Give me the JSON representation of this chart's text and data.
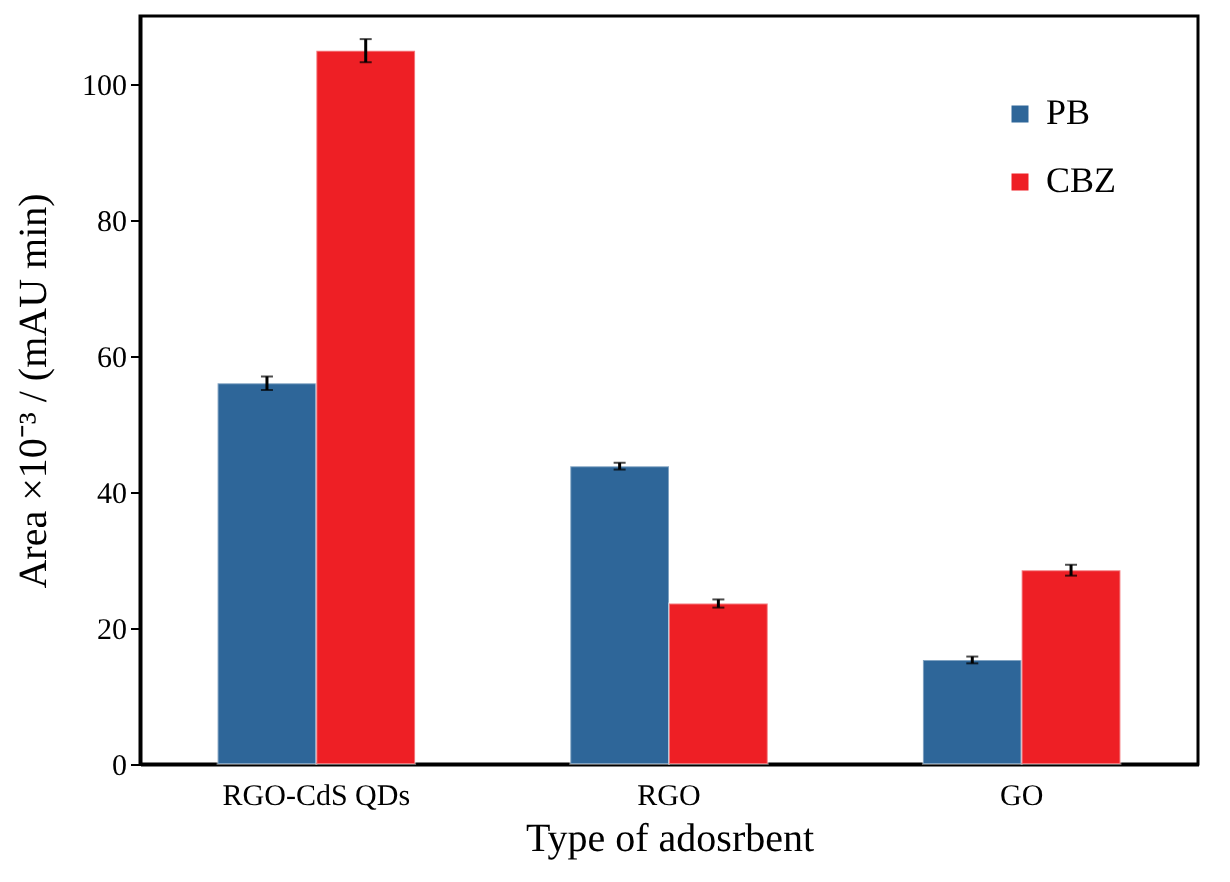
{
  "chart_data": {
    "type": "bar",
    "xlabel": "Type of adosrbent",
    "ylabel": "Area ×10⁻³ / (mAU min)",
    "categories": [
      "RGO-CdS QDs",
      "RGO",
      "GO"
    ],
    "series": [
      {
        "name": "PB",
        "color": "#2e6699",
        "values": [
          56.0,
          43.8,
          15.3
        ],
        "errors": [
          1.0,
          0.5,
          0.5
        ]
      },
      {
        "name": "CBZ",
        "color": "#ee1f25",
        "values": [
          104.9,
          23.6,
          28.5
        ],
        "errors": [
          1.7,
          0.6,
          0.8
        ]
      }
    ],
    "ylim": [
      0,
      110
    ],
    "yticks": [
      0,
      20,
      40,
      60,
      80,
      100
    ],
    "grid": false,
    "legend": "top right"
  }
}
